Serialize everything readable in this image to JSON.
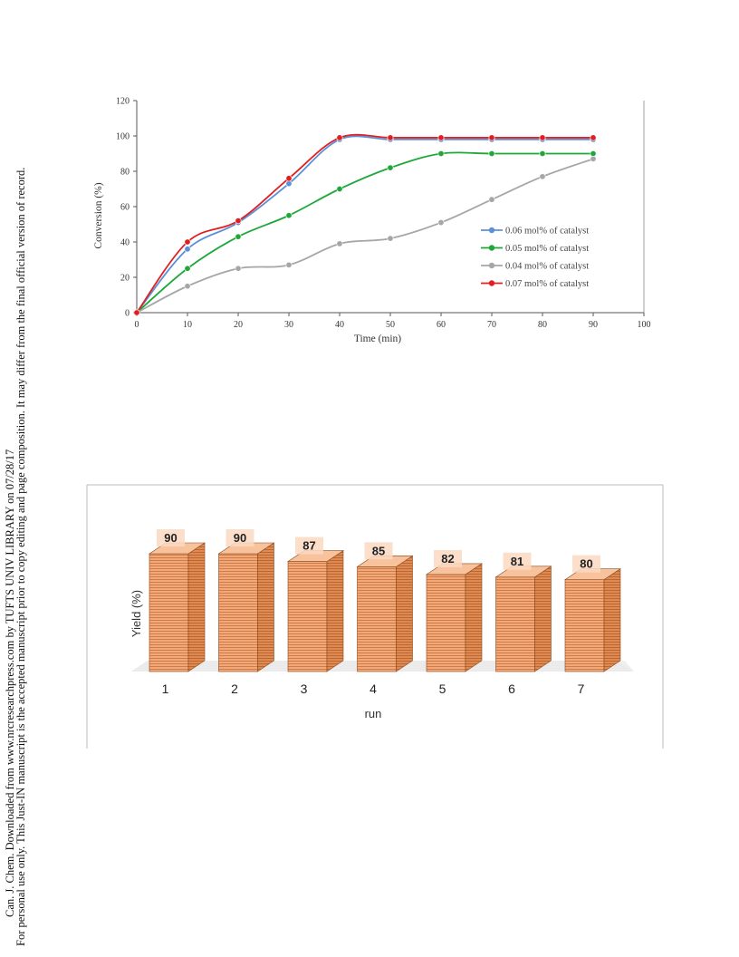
{
  "sidebar": {
    "line1": "Can. J. Chem. Downloaded from www.nrcresearchpress.com by TUFTS UNIV LIBRARY on 07/28/17",
    "line2": "For personal use only. This Just-IN manuscript is the accepted manuscript prior to copy editing and page composition. It may differ from the final official version of record."
  },
  "chart_data": [
    {
      "type": "line",
      "title": "",
      "xlabel": "Time (min)",
      "ylabel": "Conversion (%)",
      "xlim": [
        0,
        100
      ],
      "ylim": [
        0,
        120
      ],
      "xticks": [
        0,
        10,
        20,
        30,
        40,
        50,
        60,
        70,
        80,
        90,
        100
      ],
      "yticks": [
        0,
        20,
        40,
        60,
        80,
        100,
        120
      ],
      "legend_position": "right",
      "grid": false,
      "series": [
        {
          "name": "0.06 mol% of catalyst",
          "color": "#5b8fd6",
          "x": [
            0,
            10,
            20,
            30,
            40,
            50,
            60,
            70,
            80,
            90
          ],
          "y": [
            0,
            36,
            51,
            73,
            98,
            98,
            98,
            98,
            98,
            98
          ]
        },
        {
          "name": "0.05 mol% of catalyst",
          "color": "#1fa83a",
          "x": [
            0,
            10,
            20,
            30,
            40,
            50,
            60,
            70,
            80,
            90
          ],
          "y": [
            0,
            25,
            43,
            55,
            70,
            82,
            90,
            90,
            90,
            90
          ]
        },
        {
          "name": "0.04 mol% of catalyst",
          "color": "#a6a6a6",
          "x": [
            0,
            10,
            20,
            30,
            40,
            50,
            60,
            70,
            80,
            90
          ],
          "y": [
            0,
            15,
            25,
            27,
            39,
            42,
            51,
            64,
            77,
            87
          ]
        },
        {
          "name": "0.07 mol% of catalyst",
          "color": "#e02020",
          "x": [
            0,
            10,
            20,
            30,
            40,
            50,
            60,
            70,
            80,
            90
          ],
          "y": [
            0,
            40,
            52,
            76,
            99,
            99,
            99,
            99,
            99,
            99
          ]
        }
      ]
    },
    {
      "type": "bar",
      "title": "",
      "xlabel": "run",
      "ylabel": "Yield (%)",
      "categories": [
        "1",
        "2",
        "3",
        "4",
        "5",
        "6",
        "7"
      ],
      "values": [
        90,
        90,
        87,
        85,
        82,
        81,
        80
      ],
      "data_labels": [
        "90",
        "90",
        "87",
        "85",
        "82",
        "81",
        "80"
      ],
      "bar_color": "#f4a877"
    }
  ]
}
